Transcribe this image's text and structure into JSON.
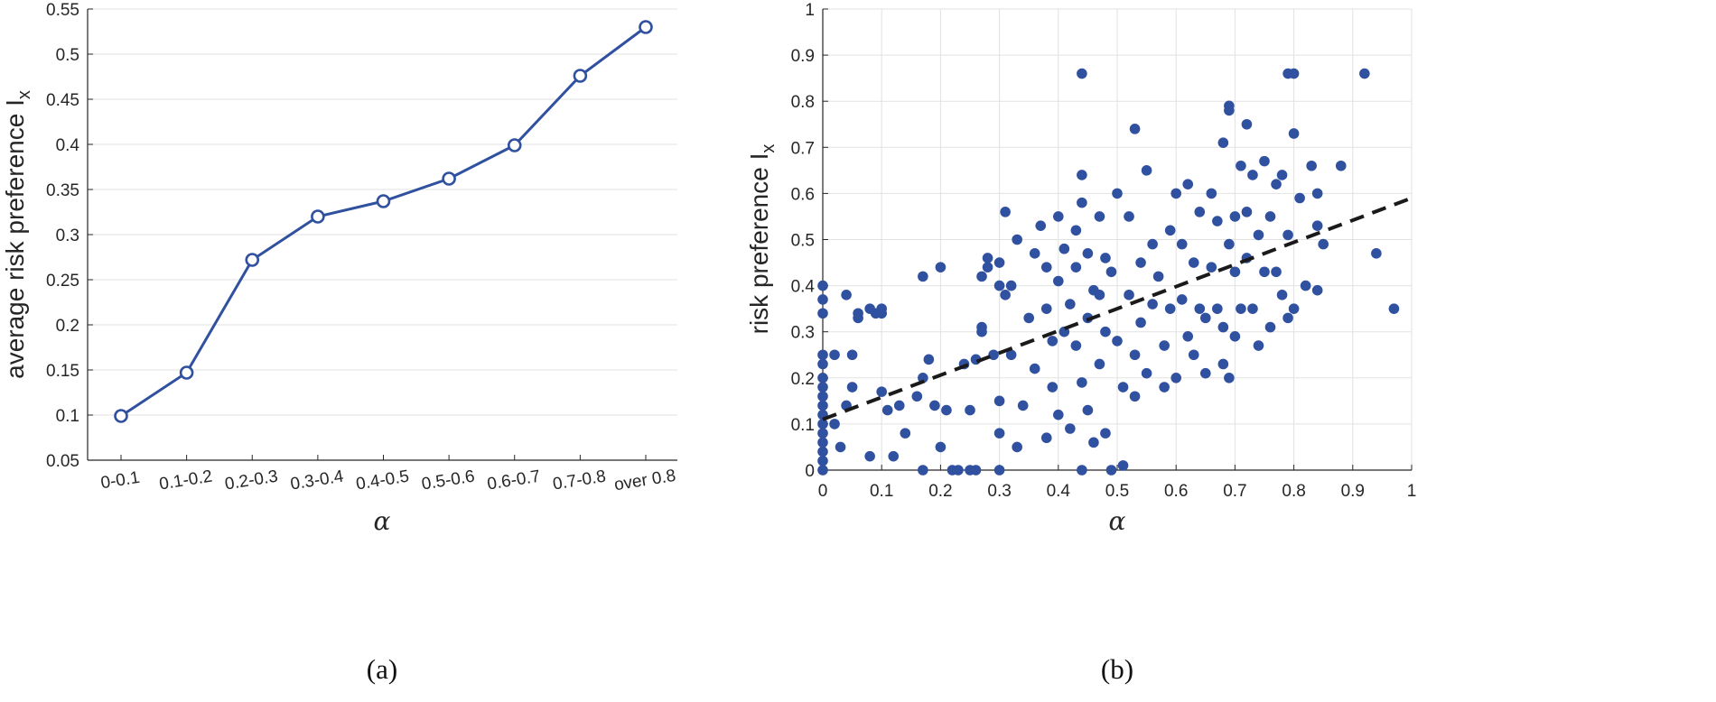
{
  "colors": {
    "series": "#3050a0",
    "trend": "#1a1a1a",
    "grid": "#e2e2e2",
    "axis": "#262626"
  },
  "chart_data": [
    {
      "type": "line",
      "caption": "(a)",
      "xlabel": "α",
      "ylabel": "average risk preference I",
      "ylabel_sub": "x",
      "ylim": [
        0.05,
        0.55
      ],
      "yticks": [
        "0.05",
        "0.1",
        "0.15",
        "0.2",
        "0.25",
        "0.3",
        "0.35",
        "0.4",
        "0.45",
        "0.5",
        "0.55"
      ],
      "grid": true,
      "categories": [
        "0-0.1",
        "0.1-0.2",
        "0.2-0.3",
        "0.3-0.4",
        "0.4-0.5",
        "0.5-0.6",
        "0.6-0.7",
        "0.7-0.8",
        "over 0.8"
      ],
      "values": [
        0.099,
        0.147,
        0.272,
        0.32,
        0.337,
        0.362,
        0.399,
        0.476,
        0.53
      ],
      "marker": "open-circle"
    },
    {
      "type": "scatter",
      "caption": "(b)",
      "xlabel": "α",
      "ylabel": "risk preference I",
      "ylabel_sub": "x",
      "xlim": [
        0,
        1
      ],
      "ylim": [
        0,
        1
      ],
      "xticks": [
        "0",
        "0.1",
        "0.2",
        "0.3",
        "0.4",
        "0.5",
        "0.6",
        "0.7",
        "0.8",
        "0.9",
        "1"
      ],
      "yticks": [
        "0",
        "0.1",
        "0.2",
        "0.3",
        "0.4",
        "0.5",
        "0.6",
        "0.7",
        "0.8",
        "0.9",
        "1"
      ],
      "grid": true,
      "trend_line": {
        "style": "dashed",
        "x": [
          0,
          1
        ],
        "y": [
          0.11,
          0.59
        ]
      },
      "points": [
        [
          0.0,
          0.0
        ],
        [
          0.0,
          0.02
        ],
        [
          0.0,
          0.04
        ],
        [
          0.0,
          0.06
        ],
        [
          0.0,
          0.08
        ],
        [
          0.0,
          0.1
        ],
        [
          0.0,
          0.12
        ],
        [
          0.0,
          0.14
        ],
        [
          0.0,
          0.16
        ],
        [
          0.0,
          0.18
        ],
        [
          0.0,
          0.2
        ],
        [
          0.0,
          0.23
        ],
        [
          0.0,
          0.25
        ],
        [
          0.0,
          0.34
        ],
        [
          0.0,
          0.37
        ],
        [
          0.0,
          0.4
        ],
        [
          0.02,
          0.1
        ],
        [
          0.02,
          0.25
        ],
        [
          0.03,
          0.05
        ],
        [
          0.04,
          0.14
        ],
        [
          0.04,
          0.38
        ],
        [
          0.05,
          0.18
        ],
        [
          0.05,
          0.25
        ],
        [
          0.06,
          0.33
        ],
        [
          0.06,
          0.34
        ],
        [
          0.08,
          0.03
        ],
        [
          0.08,
          0.35
        ],
        [
          0.09,
          0.34
        ],
        [
          0.1,
          0.34
        ],
        [
          0.1,
          0.35
        ],
        [
          0.1,
          0.17
        ],
        [
          0.11,
          0.13
        ],
        [
          0.12,
          0.03
        ],
        [
          0.13,
          0.14
        ],
        [
          0.14,
          0.08
        ],
        [
          0.16,
          0.16
        ],
        [
          0.17,
          0.2
        ],
        [
          0.17,
          0.42
        ],
        [
          0.17,
          0.0
        ],
        [
          0.18,
          0.24
        ],
        [
          0.19,
          0.14
        ],
        [
          0.2,
          0.44
        ],
        [
          0.2,
          0.05
        ],
        [
          0.21,
          0.13
        ],
        [
          0.22,
          0.0
        ],
        [
          0.23,
          0.0
        ],
        [
          0.24,
          0.23
        ],
        [
          0.25,
          0.13
        ],
        [
          0.25,
          0.0
        ],
        [
          0.26,
          0.0
        ],
        [
          0.26,
          0.24
        ],
        [
          0.27,
          0.42
        ],
        [
          0.27,
          0.31
        ],
        [
          0.27,
          0.3
        ],
        [
          0.28,
          0.46
        ],
        [
          0.28,
          0.44
        ],
        [
          0.29,
          0.25
        ],
        [
          0.3,
          0.15
        ],
        [
          0.3,
          0.08
        ],
        [
          0.3,
          0.0
        ],
        [
          0.3,
          0.45
        ],
        [
          0.3,
          0.4
        ],
        [
          0.31,
          0.56
        ],
        [
          0.31,
          0.38
        ],
        [
          0.32,
          0.25
        ],
        [
          0.32,
          0.4
        ],
        [
          0.33,
          0.5
        ],
        [
          0.33,
          0.05
        ],
        [
          0.34,
          0.14
        ],
        [
          0.35,
          0.33
        ],
        [
          0.36,
          0.47
        ],
        [
          0.36,
          0.22
        ],
        [
          0.37,
          0.53
        ],
        [
          0.38,
          0.07
        ],
        [
          0.38,
          0.44
        ],
        [
          0.38,
          0.35
        ],
        [
          0.39,
          0.28
        ],
        [
          0.39,
          0.18
        ],
        [
          0.4,
          0.55
        ],
        [
          0.4,
          0.12
        ],
        [
          0.4,
          0.41
        ],
        [
          0.41,
          0.3
        ],
        [
          0.41,
          0.48
        ],
        [
          0.42,
          0.36
        ],
        [
          0.42,
          0.09
        ],
        [
          0.43,
          0.52
        ],
        [
          0.43,
          0.44
        ],
        [
          0.43,
          0.27
        ],
        [
          0.44,
          0.64
        ],
        [
          0.44,
          0.86
        ],
        [
          0.44,
          0.0
        ],
        [
          0.44,
          0.19
        ],
        [
          0.44,
          0.58
        ],
        [
          0.45,
          0.47
        ],
        [
          0.45,
          0.33
        ],
        [
          0.45,
          0.13
        ],
        [
          0.46,
          0.39
        ],
        [
          0.46,
          0.06
        ],
        [
          0.47,
          0.55
        ],
        [
          0.47,
          0.23
        ],
        [
          0.47,
          0.38
        ],
        [
          0.48,
          0.08
        ],
        [
          0.48,
          0.46
        ],
        [
          0.48,
          0.3
        ],
        [
          0.49,
          0.0
        ],
        [
          0.49,
          0.43
        ],
        [
          0.5,
          0.6
        ],
        [
          0.5,
          0.28
        ],
        [
          0.51,
          0.18
        ],
        [
          0.51,
          0.01
        ],
        [
          0.52,
          0.55
        ],
        [
          0.52,
          0.38
        ],
        [
          0.53,
          0.74
        ],
        [
          0.53,
          0.25
        ],
        [
          0.53,
          0.16
        ],
        [
          0.54,
          0.32
        ],
        [
          0.54,
          0.45
        ],
        [
          0.55,
          0.65
        ],
        [
          0.55,
          0.21
        ],
        [
          0.56,
          0.49
        ],
        [
          0.56,
          0.36
        ],
        [
          0.57,
          0.42
        ],
        [
          0.58,
          0.27
        ],
        [
          0.58,
          0.18
        ],
        [
          0.59,
          0.52
        ],
        [
          0.59,
          0.35
        ],
        [
          0.6,
          0.6
        ],
        [
          0.6,
          0.2
        ],
        [
          0.61,
          0.49
        ],
        [
          0.61,
          0.37
        ],
        [
          0.62,
          0.62
        ],
        [
          0.62,
          0.29
        ],
        [
          0.63,
          0.45
        ],
        [
          0.63,
          0.25
        ],
        [
          0.64,
          0.56
        ],
        [
          0.64,
          0.35
        ],
        [
          0.65,
          0.33
        ],
        [
          0.65,
          0.21
        ],
        [
          0.66,
          0.6
        ],
        [
          0.66,
          0.44
        ],
        [
          0.67,
          0.54
        ],
        [
          0.67,
          0.35
        ],
        [
          0.68,
          0.71
        ],
        [
          0.68,
          0.23
        ],
        [
          0.68,
          0.31
        ],
        [
          0.69,
          0.79
        ],
        [
          0.69,
          0.78
        ],
        [
          0.69,
          0.49
        ],
        [
          0.69,
          0.2
        ],
        [
          0.7,
          0.55
        ],
        [
          0.7,
          0.43
        ],
        [
          0.7,
          0.29
        ],
        [
          0.71,
          0.66
        ],
        [
          0.71,
          0.35
        ],
        [
          0.72,
          0.75
        ],
        [
          0.72,
          0.56
        ],
        [
          0.72,
          0.46
        ],
        [
          0.73,
          0.64
        ],
        [
          0.73,
          0.35
        ],
        [
          0.74,
          0.51
        ],
        [
          0.74,
          0.27
        ],
        [
          0.75,
          0.67
        ],
        [
          0.75,
          0.43
        ],
        [
          0.76,
          0.55
        ],
        [
          0.76,
          0.31
        ],
        [
          0.77,
          0.62
        ],
        [
          0.77,
          0.43
        ],
        [
          0.78,
          0.64
        ],
        [
          0.78,
          0.38
        ],
        [
          0.79,
          0.86
        ],
        [
          0.79,
          0.51
        ],
        [
          0.79,
          0.33
        ],
        [
          0.8,
          0.86
        ],
        [
          0.8,
          0.73
        ],
        [
          0.8,
          0.35
        ],
        [
          0.81,
          0.59
        ],
        [
          0.82,
          0.4
        ],
        [
          0.83,
          0.66
        ],
        [
          0.84,
          0.6
        ],
        [
          0.84,
          0.53
        ],
        [
          0.84,
          0.39
        ],
        [
          0.85,
          0.49
        ],
        [
          0.88,
          0.66
        ],
        [
          0.92,
          0.86
        ],
        [
          0.94,
          0.47
        ],
        [
          0.97,
          0.35
        ]
      ]
    }
  ]
}
